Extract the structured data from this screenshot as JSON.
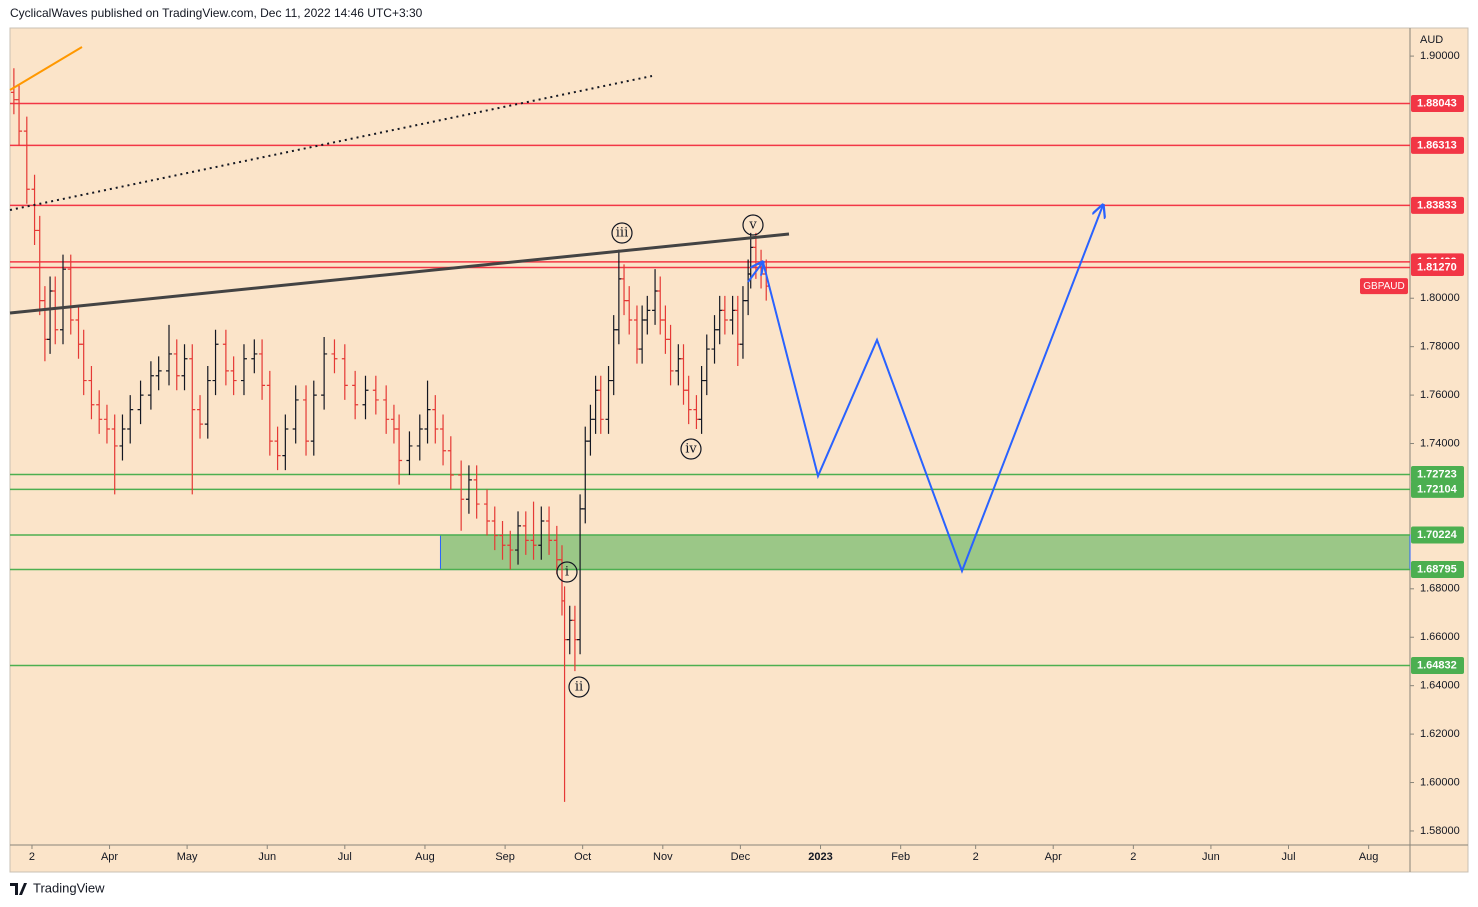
{
  "header": "CyclicalWaves published on TradingView.com, Dec 11, 2022 14:46 UTC+3:30",
  "footer": "TradingView",
  "chart_data": {
    "type": "ohlc",
    "symbol": "GBPAUD",
    "currency": "AUD",
    "up_color": "#131722",
    "down_color": "#e53935",
    "xlim": [
      -8.5,
      533
    ],
    "ylim": [
      1.5742,
      1.9116
    ],
    "xticks": [
      {
        "value": 0,
        "label": "2"
      },
      {
        "value": 30,
        "label": "Apr"
      },
      {
        "value": 60,
        "label": "May"
      },
      {
        "value": 91,
        "label": "Jun"
      },
      {
        "value": 121,
        "label": "Jul"
      },
      {
        "value": 152,
        "label": "Aug"
      },
      {
        "value": 183,
        "label": "Sep"
      },
      {
        "value": 213,
        "label": "Oct"
      },
      {
        "value": 244,
        "label": "Nov"
      },
      {
        "value": 274,
        "label": "Dec"
      },
      {
        "value": 305,
        "label": "2023"
      },
      {
        "value": 336,
        "label": "Feb"
      },
      {
        "value": 365,
        "label": "2"
      },
      {
        "value": 395,
        "label": "Apr"
      },
      {
        "value": 426,
        "label": "2"
      },
      {
        "value": 456,
        "label": "Jun"
      },
      {
        "value": 486,
        "label": "Jul"
      },
      {
        "value": 517,
        "label": "Aug"
      }
    ],
    "yticks": [
      {
        "value": 1.9,
        "label": "1.90000"
      },
      {
        "value": 1.8,
        "label": "1.80000"
      },
      {
        "value": 1.78,
        "label": "1.78000"
      },
      {
        "value": 1.76,
        "label": "1.76000"
      },
      {
        "value": 1.74,
        "label": "1.74000"
      },
      {
        "value": 1.68,
        "label": "1.68000"
      },
      {
        "value": 1.66,
        "label": "1.66000"
      },
      {
        "value": 1.64,
        "label": "1.64000"
      },
      {
        "value": 1.62,
        "label": "1.62000"
      },
      {
        "value": 1.6,
        "label": "1.60000"
      },
      {
        "value": 1.58,
        "label": "1.58000"
      }
    ],
    "levels": [
      {
        "value": 1.88043,
        "color": "#f23645"
      },
      {
        "value": 1.86313,
        "color": "#f23645"
      },
      {
        "value": 1.83833,
        "color": "#f23645"
      },
      {
        "value": 1.81499,
        "color": "#f23645"
      },
      {
        "value": 1.8127,
        "label": "1.81270",
        "color": "#f23645"
      },
      {
        "value": 1.72723,
        "color": "#4caf50"
      },
      {
        "value": 1.72104,
        "color": "#4caf50"
      },
      {
        "value": 1.70224,
        "color": "#4caf50"
      },
      {
        "value": 1.68795,
        "color": "#4caf50"
      },
      {
        "value": 1.64832,
        "color": "#4caf50"
      }
    ],
    "zone": {
      "start": 158,
      "low": 1.68795,
      "high": 1.70224,
      "color": "#4caf50"
    },
    "waves": [
      "iii",
      "v",
      "iv",
      "i",
      "ii"
    ],
    "x": [
      -7,
      -5,
      -2,
      1,
      3,
      5,
      7,
      9,
      12,
      15,
      18,
      20,
      23,
      26,
      29,
      32,
      35,
      38,
      42,
      46,
      49,
      53,
      56,
      59,
      62,
      65,
      68,
      71,
      75,
      78,
      82,
      86,
      89,
      92,
      95,
      98,
      102,
      106,
      109,
      113,
      117,
      121,
      125,
      129,
      133,
      137,
      140,
      142,
      146,
      150,
      153,
      156,
      159,
      162,
      166,
      169,
      172,
      176,
      179,
      182,
      185,
      188,
      191,
      194,
      197,
      200,
      203,
      205,
      206,
      208,
      210,
      212,
      214,
      216,
      218,
      220,
      223,
      225,
      227,
      229,
      231,
      234,
      236,
      238,
      241,
      243,
      245,
      247,
      250,
      252,
      254,
      257,
      259,
      261,
      264,
      266,
      268,
      271,
      273,
      275,
      277,
      278,
      280,
      282,
      284
    ],
    "open": [
      1.885,
      1.882,
      1.869,
      1.845,
      1.828,
      1.799,
      1.783,
      1.803,
      1.787,
      1.812,
      1.791,
      1.781,
      1.766,
      1.756,
      1.75,
      1.746,
      1.739,
      1.746,
      1.754,
      1.76,
      1.768,
      1.77,
      1.777,
      1.768,
      1.775,
      1.754,
      1.748,
      1.766,
      1.781,
      1.77,
      1.766,
      1.775,
      1.777,
      1.764,
      1.741,
      1.735,
      1.746,
      1.758,
      1.741,
      1.76,
      1.777,
      1.775,
      1.764,
      1.756,
      1.762,
      1.758,
      1.75,
      1.746,
      1.733,
      1.739,
      1.746,
      1.754,
      1.746,
      1.737,
      1.727,
      1.717,
      1.725,
      1.715,
      1.708,
      1.702,
      1.698,
      1.696,
      1.706,
      1.7,
      1.698,
      1.708,
      1.7,
      1.692,
      1.675,
      1.659,
      1.667,
      1.659,
      1.713,
      1.741,
      1.75,
      1.762,
      1.75,
      1.766,
      1.787,
      1.808,
      1.799,
      1.791,
      1.779,
      1.791,
      1.795,
      1.803,
      1.791,
      1.783,
      1.77,
      1.775,
      1.762,
      1.754,
      1.75,
      1.766,
      1.779,
      1.787,
      1.795,
      1.791,
      1.795,
      1.781,
      1.799,
      1.81,
      1.821,
      1.814,
      1.81
    ],
    "high": [
      1.895,
      1.888,
      1.875,
      1.851,
      1.834,
      1.805,
      1.809,
      1.809,
      1.818,
      1.818,
      1.797,
      1.787,
      1.772,
      1.762,
      1.756,
      1.752,
      1.752,
      1.76,
      1.766,
      1.774,
      1.776,
      1.789,
      1.783,
      1.781,
      1.781,
      1.76,
      1.772,
      1.787,
      1.787,
      1.776,
      1.781,
      1.783,
      1.783,
      1.77,
      1.747,
      1.752,
      1.764,
      1.764,
      1.766,
      1.784,
      1.783,
      1.781,
      1.77,
      1.768,
      1.768,
      1.764,
      1.756,
      1.752,
      1.745,
      1.752,
      1.766,
      1.76,
      1.752,
      1.743,
      1.733,
      1.731,
      1.731,
      1.721,
      1.714,
      1.708,
      1.704,
      1.712,
      1.712,
      1.716,
      1.714,
      1.714,
      1.706,
      1.698,
      1.681,
      1.673,
      1.673,
      1.719,
      1.747,
      1.756,
      1.768,
      1.768,
      1.772,
      1.793,
      1.82,
      1.814,
      1.805,
      1.797,
      1.797,
      1.801,
      1.812,
      1.809,
      1.797,
      1.789,
      1.781,
      1.781,
      1.768,
      1.76,
      1.772,
      1.785,
      1.793,
      1.801,
      1.801,
      1.801,
      1.801,
      1.805,
      1.816,
      1.827,
      1.827,
      1.82,
      1.816
    ],
    "low": [
      1.876,
      1.863,
      1.839,
      1.822,
      1.793,
      1.774,
      1.777,
      1.781,
      1.781,
      1.785,
      1.775,
      1.76,
      1.75,
      1.744,
      1.74,
      1.719,
      1.733,
      1.74,
      1.748,
      1.754,
      1.762,
      1.764,
      1.762,
      1.762,
      1.719,
      1.742,
      1.742,
      1.76,
      1.764,
      1.76,
      1.76,
      1.769,
      1.758,
      1.735,
      1.729,
      1.729,
      1.74,
      1.735,
      1.735,
      1.754,
      1.769,
      1.758,
      1.75,
      1.75,
      1.752,
      1.744,
      1.74,
      1.723,
      1.727,
      1.733,
      1.74,
      1.74,
      1.731,
      1.721,
      1.704,
      1.711,
      1.709,
      1.702,
      1.696,
      1.692,
      1.688,
      1.69,
      1.694,
      1.692,
      1.692,
      1.694,
      1.686,
      1.669,
      1.592,
      1.653,
      1.646,
      1.653,
      1.707,
      1.735,
      1.744,
      1.744,
      1.744,
      1.76,
      1.781,
      1.793,
      1.785,
      1.773,
      1.773,
      1.785,
      1.789,
      1.785,
      1.777,
      1.764,
      1.764,
      1.756,
      1.748,
      1.746,
      1.744,
      1.76,
      1.773,
      1.781,
      1.785,
      1.785,
      1.772,
      1.775,
      1.793,
      1.804,
      1.808,
      1.804,
      1.799
    ],
    "close": [
      1.882,
      1.869,
      1.845,
      1.828,
      1.799,
      1.783,
      1.803,
      1.787,
      1.812,
      1.791,
      1.781,
      1.766,
      1.756,
      1.75,
      1.746,
      1.739,
      1.746,
      1.754,
      1.76,
      1.768,
      1.77,
      1.777,
      1.768,
      1.775,
      1.754,
      1.748,
      1.766,
      1.781,
      1.77,
      1.766,
      1.775,
      1.777,
      1.764,
      1.741,
      1.735,
      1.746,
      1.758,
      1.741,
      1.76,
      1.777,
      1.775,
      1.764,
      1.756,
      1.762,
      1.758,
      1.75,
      1.746,
      1.733,
      1.739,
      1.746,
      1.754,
      1.746,
      1.737,
      1.727,
      1.717,
      1.725,
      1.715,
      1.708,
      1.702,
      1.698,
      1.696,
      1.706,
      1.7,
      1.698,
      1.708,
      1.7,
      1.692,
      1.675,
      1.659,
      1.667,
      1.659,
      1.713,
      1.741,
      1.75,
      1.762,
      1.75,
      1.766,
      1.787,
      1.808,
      1.799,
      1.791,
      1.779,
      1.791,
      1.795,
      1.803,
      1.791,
      1.783,
      1.77,
      1.775,
      1.762,
      1.754,
      1.75,
      1.766,
      1.779,
      1.787,
      1.795,
      1.791,
      1.795,
      1.781,
      1.799,
      1.81,
      1.821,
      1.814,
      1.81,
      1.805
    ]
  }
}
